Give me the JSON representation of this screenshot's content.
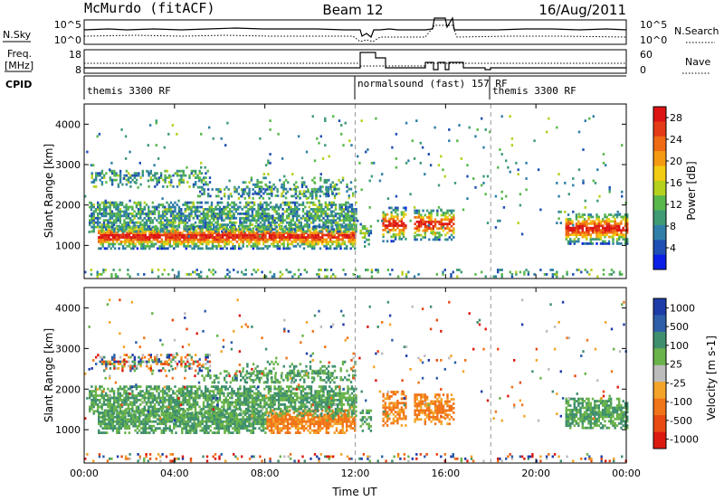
{
  "header": {
    "station": "McMurdo (fitACF)",
    "beam": "Beam 12",
    "date": "16/Aug/2011"
  },
  "params": {
    "nsky_label": "N.Sky",
    "nsearch_label": "N.Search",
    "freq_label_1": "Freq.",
    "freq_label_2": "[MHz]",
    "nave_label": "Nave",
    "cpid_label": "CPID",
    "left_ticks_top": [
      "10^5",
      "10^0"
    ],
    "left_ticks_bottom": [
      "18",
      "8"
    ],
    "right_ticks_top": [
      "10^5",
      "10^0"
    ],
    "right_ticks_bottom": [
      "60",
      "0"
    ]
  },
  "cpid_segments": [
    {
      "label": "themis 3300 RF",
      "start": 0.0
    },
    {
      "label": "normalsound (fast) 157 RF",
      "start": 12.0
    },
    {
      "label": "themis 3300 RF",
      "start": 18.0
    }
  ],
  "chart_data": [
    {
      "type": "heatmap",
      "panel": "power",
      "xlabel": "",
      "ylabel": "Slant Range [km]",
      "xlim": [
        0,
        24
      ],
      "ylim": [
        180,
        4500
      ],
      "x_ticks": [
        "00:00",
        "04:00",
        "08:00",
        "12:00",
        "16:00",
        "20:00",
        "00:00"
      ],
      "y_ticks": [
        1000,
        2000,
        3000,
        4000
      ],
      "colorbar": {
        "label": "Power [dB]",
        "ticks": [
          4,
          8,
          12,
          16,
          20,
          24,
          28
        ],
        "range": [
          0,
          30
        ],
        "colors": [
          "#0a1ee6",
          "#1e4fb4",
          "#2f7fa8",
          "#3e9b74",
          "#59b84c",
          "#b6d01e",
          "#f2cc12",
          "#f49a12",
          "#ef6a14",
          "#e53a16",
          "#dc1414"
        ]
      }
    },
    {
      "type": "heatmap",
      "panel": "velocity",
      "xlabel": "Time UT",
      "ylabel": "Slant Range [km]",
      "xlim": [
        0,
        24
      ],
      "ylim": [
        180,
        4500
      ],
      "x_ticks": [
        "00:00",
        "04:00",
        "08:00",
        "12:00",
        "16:00",
        "20:00",
        "00:00"
      ],
      "y_ticks": [
        1000,
        2000,
        3000,
        4000
      ],
      "colorbar": {
        "label": "Velocity [m s-1]",
        "ticks": [
          "1000",
          "500",
          "100",
          "25",
          "-25",
          "-100",
          "-500",
          "-1000"
        ],
        "colors": [
          "#1e3ca8",
          "#2e5fa8",
          "#3f8f6e",
          "#69b34a",
          "#bcbcbc",
          "#f4a428",
          "#f07418",
          "#e84a12",
          "#dc1a10"
        ]
      }
    }
  ]
}
